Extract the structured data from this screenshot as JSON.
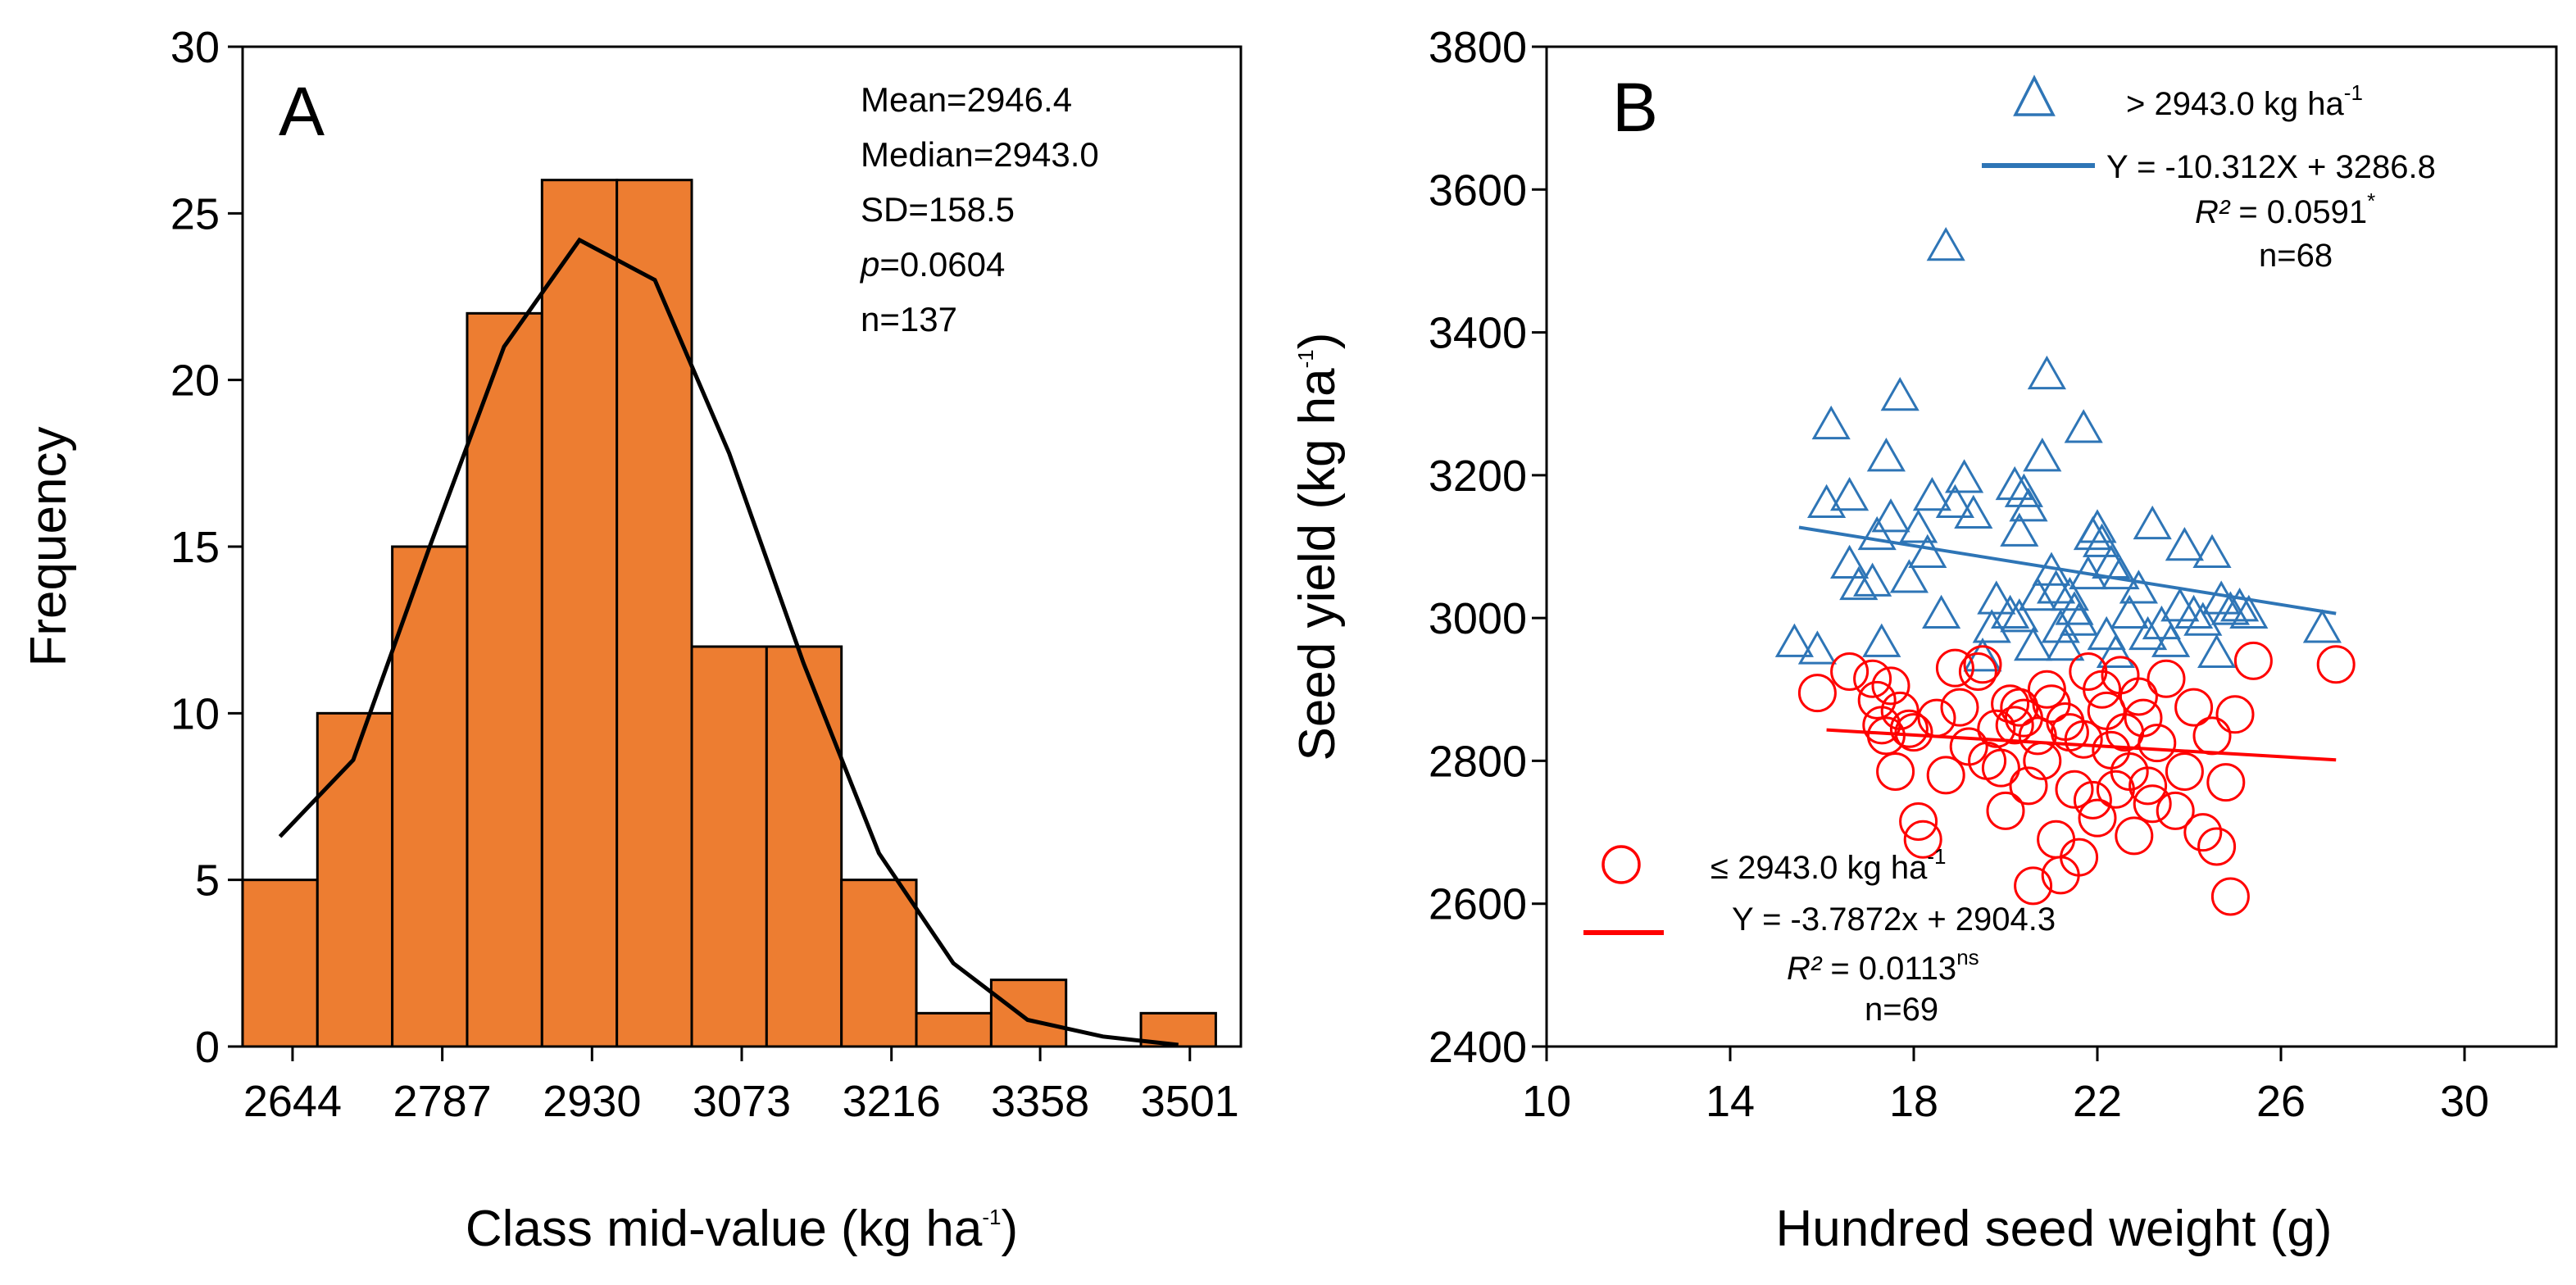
{
  "chart_data": [
    {
      "panel": "A",
      "type": "bar",
      "xlabel": "Class mid-value (kg ha",
      "xlabel_sup": "-1",
      "xlabel_end": ")",
      "ylabel": "Frequency",
      "ylim": [
        0,
        30
      ],
      "yticks": [
        0,
        5,
        10,
        15,
        20,
        25,
        30
      ],
      "xlim": [
        2596.3,
        3549.7
      ],
      "xticks": [
        2644,
        2787,
        2930,
        3073,
        3216,
        3358,
        3501
      ],
      "bin_width": 71.5,
      "bins": [
        {
          "mid": 2632.0,
          "freq": 5
        },
        {
          "mid": 2703.5,
          "freq": 10
        },
        {
          "mid": 2775.0,
          "freq": 15
        },
        {
          "mid": 2846.5,
          "freq": 22
        },
        {
          "mid": 2918.0,
          "freq": 26
        },
        {
          "mid": 2989.5,
          "freq": 26
        },
        {
          "mid": 3061.0,
          "freq": 12
        },
        {
          "mid": 3132.5,
          "freq": 12
        },
        {
          "mid": 3204.0,
          "freq": 5
        },
        {
          "mid": 3275.5,
          "freq": 1
        },
        {
          "mid": 3347.0,
          "freq": 2
        },
        {
          "mid": 3418.5,
          "freq": 0
        },
        {
          "mid": 3490.0,
          "freq": 1
        }
      ],
      "normal_curve": {
        "x": [
          2632,
          2702,
          2775,
          2846,
          2918,
          2990,
          3061,
          3132,
          3204,
          3275,
          3346,
          3418,
          3490
        ],
        "y": [
          6.3,
          8.6,
          15.0,
          21.0,
          24.2,
          23.0,
          17.8,
          11.5,
          5.8,
          2.5,
          0.8,
          0.3,
          0.05
        ]
      },
      "bar_color": "#ED7D31",
      "annotations": {
        "mean": "Mean=2946.4",
        "median": "Median=2943.0",
        "sd": "SD=158.5",
        "p_label": "p",
        "p_value": "=0.0604",
        "n": "n=137"
      }
    },
    {
      "panel": "B",
      "type": "scatter",
      "xlabel": "Hundred seed weight (g)",
      "ylabel": "Seed yield (kg ha",
      "ylabel_sup": "-1",
      "ylabel_end": ")",
      "xlim": [
        10,
        32
      ],
      "ylim": [
        2400,
        3800
      ],
      "xticks": [
        10,
        14,
        18,
        22,
        26,
        30
      ],
      "yticks": [
        2400,
        2600,
        2800,
        3000,
        3200,
        3400,
        3600,
        3800
      ],
      "series": [
        {
          "name": "> 2943.0 kg ha",
          "name_sup": "-1",
          "marker": "triangle",
          "color": "#2E75B6",
          "equation": "Y = -10.312X + 3286.8",
          "r2_label": "R²",
          "r2_value": " = 0.0591",
          "r2_sig": "*",
          "n": "n=68",
          "fit": {
            "slope": -10.312,
            "intercept": 3286.8,
            "x_range": [
              15.5,
              27.2
            ]
          },
          "points": [
            [
              15.4,
              2965
            ],
            [
              15.9,
              2955
            ],
            [
              16.1,
              3160
            ],
            [
              16.2,
              3270
            ],
            [
              16.6,
              3075
            ],
            [
              16.6,
              3170
            ],
            [
              16.8,
              3045
            ],
            [
              17.1,
              3050
            ],
            [
              17.2,
              3115
            ],
            [
              17.3,
              2965
            ],
            [
              17.4,
              3225
            ],
            [
              17.5,
              3140
            ],
            [
              17.7,
              3310
            ],
            [
              17.9,
              3055
            ],
            [
              18.1,
              3125
            ],
            [
              18.3,
              3090
            ],
            [
              18.4,
              3170
            ],
            [
              18.6,
              3005
            ],
            [
              18.7,
              3520
            ],
            [
              18.9,
              3160
            ],
            [
              19.1,
              3195
            ],
            [
              19.3,
              3145
            ],
            [
              19.5,
              2945
            ],
            [
              19.7,
              2985
            ],
            [
              19.8,
              3025
            ],
            [
              20.1,
              3005
            ],
            [
              20.2,
              3185
            ],
            [
              20.3,
              3120
            ],
            [
              20.4,
              3175
            ],
            [
              20.5,
              3155
            ],
            [
              20.6,
              2960
            ],
            [
              20.7,
              3030
            ],
            [
              20.8,
              3225
            ],
            [
              20.9,
              3340
            ],
            [
              21.0,
              3065
            ],
            [
              21.1,
              3040
            ],
            [
              21.2,
              2985
            ],
            [
              21.3,
              2960
            ],
            [
              21.4,
              3030
            ],
            [
              21.5,
              3010
            ],
            [
              21.6,
              2995
            ],
            [
              21.7,
              3265
            ],
            [
              21.8,
              3060
            ],
            [
              21.9,
              3115
            ],
            [
              22.0,
              3125
            ],
            [
              22.1,
              3105
            ],
            [
              22.2,
              2975
            ],
            [
              22.3,
              3075
            ],
            [
              22.4,
              2950
            ],
            [
              22.5,
              3060
            ],
            [
              22.7,
              3005
            ],
            [
              22.9,
              3040
            ],
            [
              23.1,
              2975
            ],
            [
              23.2,
              3130
            ],
            [
              23.4,
              2990
            ],
            [
              23.6,
              2965
            ],
            [
              23.8,
              3015
            ],
            [
              23.9,
              3100
            ],
            [
              24.1,
              3005
            ],
            [
              24.3,
              2995
            ],
            [
              24.5,
              3090
            ],
            [
              24.6,
              2950
            ],
            [
              24.7,
              3025
            ],
            [
              24.9,
              3010
            ],
            [
              25.1,
              3015
            ],
            [
              25.3,
              3005
            ],
            [
              26.9,
              2985
            ],
            [
              20.3,
              3000
            ]
          ]
        },
        {
          "name": "≤ 2943.0 kg ha",
          "name_sup": "-1",
          "marker": "circle",
          "color": "#FF0000",
          "equation": "Y = -3.7872x + 2904.3",
          "r2_label": "R²",
          "r2_value": " = 0.0113",
          "r2_sig": "ns",
          "n": "n=69",
          "fit": {
            "slope": -3.7872,
            "intercept": 2904.3,
            "x_range": [
              16.1,
              27.2
            ]
          },
          "points": [
            [
              15.9,
              2895
            ],
            [
              16.6,
              2925
            ],
            [
              17.1,
              2915
            ],
            [
              17.2,
              2885
            ],
            [
              17.3,
              2850
            ],
            [
              17.4,
              2835
            ],
            [
              17.5,
              2905
            ],
            [
              17.6,
              2785
            ],
            [
              17.7,
              2870
            ],
            [
              17.9,
              2845
            ],
            [
              18.0,
              2840
            ],
            [
              18.1,
              2715
            ],
            [
              18.2,
              2690
            ],
            [
              18.5,
              2860
            ],
            [
              18.7,
              2780
            ],
            [
              18.9,
              2930
            ],
            [
              19.0,
              2875
            ],
            [
              19.2,
              2820
            ],
            [
              19.4,
              2925
            ],
            [
              19.5,
              2935
            ],
            [
              19.6,
              2800
            ],
            [
              19.8,
              2845
            ],
            [
              19.9,
              2790
            ],
            [
              20.0,
              2730
            ],
            [
              20.1,
              2880
            ],
            [
              20.2,
              2850
            ],
            [
              20.3,
              2875
            ],
            [
              20.4,
              2860
            ],
            [
              20.5,
              2765
            ],
            [
              20.6,
              2625
            ],
            [
              20.7,
              2835
            ],
            [
              20.8,
              2800
            ],
            [
              20.9,
              2900
            ],
            [
              21.0,
              2880
            ],
            [
              21.1,
              2690
            ],
            [
              21.2,
              2640
            ],
            [
              21.3,
              2855
            ],
            [
              21.4,
              2840
            ],
            [
              21.5,
              2760
            ],
            [
              21.6,
              2665
            ],
            [
              21.7,
              2830
            ],
            [
              21.8,
              2925
            ],
            [
              21.9,
              2745
            ],
            [
              22.0,
              2720
            ],
            [
              22.1,
              2900
            ],
            [
              22.2,
              2870
            ],
            [
              22.3,
              2815
            ],
            [
              22.4,
              2760
            ],
            [
              22.5,
              2920
            ],
            [
              22.6,
              2840
            ],
            [
              22.7,
              2785
            ],
            [
              22.8,
              2695
            ],
            [
              22.9,
              2890
            ],
            [
              23.0,
              2860
            ],
            [
              23.1,
              2765
            ],
            [
              23.2,
              2740
            ],
            [
              23.3,
              2825
            ],
            [
              23.5,
              2915
            ],
            [
              23.7,
              2730
            ],
            [
              23.9,
              2785
            ],
            [
              24.1,
              2875
            ],
            [
              24.3,
              2700
            ],
            [
              24.5,
              2835
            ],
            [
              24.6,
              2680
            ],
            [
              24.8,
              2770
            ],
            [
              24.9,
              2610
            ],
            [
              25.0,
              2865
            ],
            [
              25.4,
              2940
            ],
            [
              27.2,
              2935
            ]
          ]
        }
      ]
    }
  ]
}
